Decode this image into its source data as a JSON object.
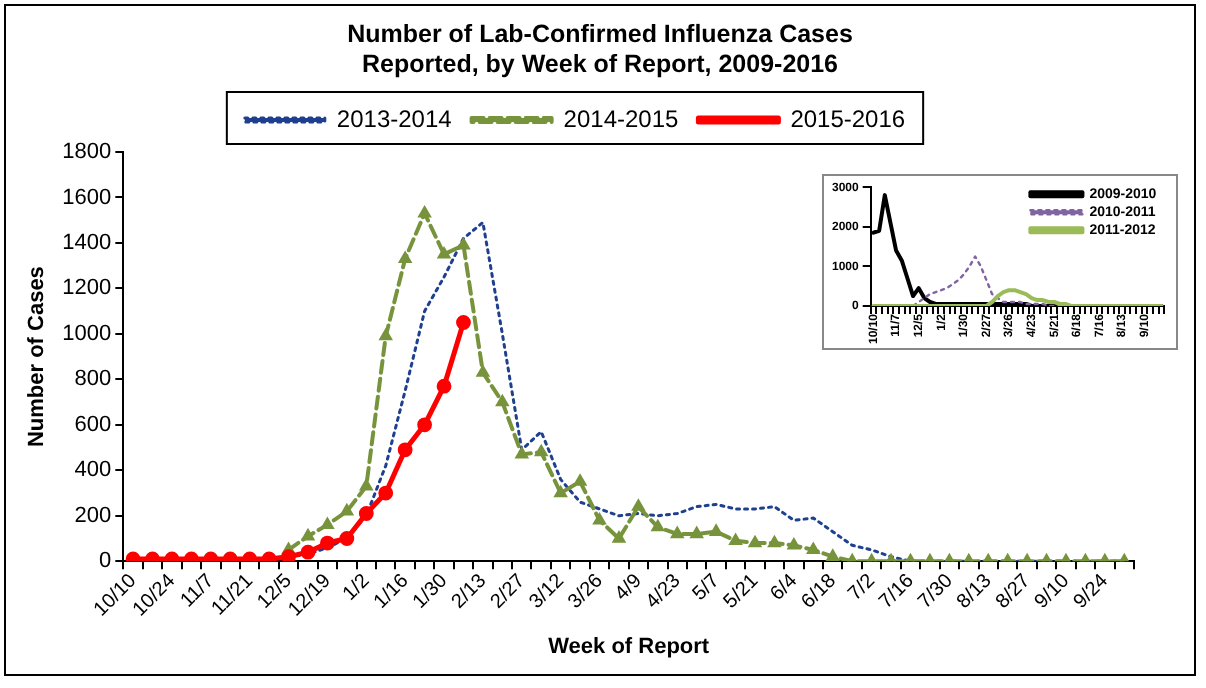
{
  "chart_data": [
    {
      "type": "line",
      "title": "Number of Lab-Confirmed Influenza Cases Reported, by Week of Report, 2009-2016",
      "xlabel": "Week of Report",
      "ylabel": "Number of Cases",
      "categories": [
        "10/10",
        null,
        "10/24",
        null,
        "11/7",
        null,
        "11/21",
        null,
        "12/5",
        null,
        "12/19",
        null,
        "1/2",
        null,
        "1/16",
        null,
        "1/30",
        null,
        "2/13",
        null,
        "2/27",
        null,
        "3/12",
        null,
        "3/26",
        null,
        "4/9",
        null,
        "4/23",
        null,
        "5/7",
        null,
        "5/21",
        null,
        "6/4",
        null,
        "6/18",
        null,
        "7/2",
        null,
        "7/16",
        null,
        "7/30",
        null,
        "8/13",
        null,
        "8/27",
        null,
        "9/10",
        null,
        "9/24",
        null
      ],
      "series": [
        {
          "name": "2013-2014",
          "color": "#1f3f8f",
          "marker": "none",
          "line_style": "dotted",
          "values": [
            null,
            null,
            null,
            null,
            null,
            null,
            null,
            null,
            20,
            30,
            60,
            100,
            200,
            420,
            750,
            1100,
            1250,
            1420,
            1490,
            1000,
            490,
            570,
            360,
            260,
            230,
            200,
            210,
            200,
            210,
            240,
            250,
            230,
            230,
            240,
            180,
            190,
            130,
            70,
            50,
            20,
            0,
            0,
            0,
            0,
            0,
            0,
            0,
            0,
            0,
            0,
            0,
            0
          ]
        },
        {
          "name": "2014-2015",
          "color": "#77933c",
          "marker": "triangle",
          "line_style": "dashed",
          "values": [
            null,
            null,
            null,
            null,
            null,
            null,
            null,
            null,
            50,
            110,
            160,
            220,
            330,
            990,
            1330,
            1530,
            1350,
            1390,
            830,
            700,
            470,
            480,
            300,
            350,
            180,
            100,
            240,
            150,
            120,
            120,
            130,
            90,
            80,
            80,
            70,
            50,
            20,
            0,
            0,
            0,
            0,
            0,
            0,
            0,
            0,
            0,
            0,
            0,
            0,
            0,
            0,
            0
          ]
        },
        {
          "name": "2015-2016",
          "color": "#ff0000",
          "marker": "circle",
          "line_style": "solid",
          "values": [
            10,
            10,
            10,
            10,
            10,
            10,
            10,
            10,
            20,
            40,
            80,
            100,
            210,
            300,
            490,
            600,
            770,
            1050,
            null,
            null,
            null,
            null,
            null,
            null,
            null,
            null,
            null,
            null,
            null,
            null,
            null,
            null,
            null,
            null,
            null,
            null,
            null,
            null,
            null,
            null,
            null,
            null,
            null,
            null,
            null,
            null,
            null,
            null,
            null,
            null,
            null,
            null
          ]
        }
      ],
      "ylim": [
        0,
        1800
      ],
      "yticks": [
        0,
        200,
        400,
        600,
        800,
        1000,
        1200,
        1400,
        1600,
        1800
      ],
      "legend": "top"
    },
    {
      "type": "line",
      "categories": [
        "10/10",
        null,
        null,
        null,
        "11/7",
        null,
        null,
        null,
        "12/5",
        null,
        null,
        null,
        "1/2",
        null,
        null,
        null,
        "1/30",
        null,
        null,
        null,
        "2/27",
        null,
        null,
        null,
        "3/26",
        null,
        null,
        null,
        "4/23",
        null,
        null,
        null,
        "5/21",
        null,
        null,
        null,
        "6/18",
        null,
        null,
        null,
        "7/16",
        null,
        null,
        null,
        "8/13",
        null,
        null,
        null,
        "9/10",
        null,
        null,
        null
      ],
      "series": [
        {
          "name": "2009-2010",
          "color": "#000000",
          "marker": "none",
          "line_style": "solid",
          "values": [
            1850,
            1900,
            2800,
            2100,
            1400,
            1150,
            700,
            250,
            450,
            200,
            100,
            50,
            50,
            50,
            50,
            50,
            50,
            50,
            50,
            50,
            50,
            50,
            50,
            50,
            50,
            50,
            50,
            50,
            0,
            0,
            0,
            0,
            0,
            0,
            0,
            0,
            0,
            0,
            0,
            0,
            0,
            0,
            0,
            0,
            0,
            0,
            0,
            0,
            0,
            0,
            0,
            0
          ]
        },
        {
          "name": "2010-2011",
          "color": "#8064a2",
          "marker": "none",
          "line_style": "dotted",
          "values": [
            0,
            0,
            0,
            0,
            0,
            0,
            0,
            0,
            100,
            200,
            300,
            350,
            400,
            450,
            550,
            650,
            800,
            1000,
            1250,
            1000,
            650,
            300,
            200,
            100,
            100,
            100,
            100,
            50,
            50,
            50,
            50,
            0,
            0,
            0,
            0,
            0,
            0,
            0,
            0,
            0,
            0,
            0,
            0,
            0,
            0,
            0,
            0,
            0,
            0,
            0,
            0,
            0
          ]
        },
        {
          "name": "2011-2012",
          "color": "#9bbb59",
          "marker": "none",
          "line_style": "solid",
          "values": [
            0,
            0,
            0,
            0,
            0,
            0,
            0,
            0,
            0,
            0,
            0,
            0,
            0,
            0,
            0,
            0,
            0,
            0,
            0,
            0,
            0,
            100,
            250,
            350,
            400,
            400,
            350,
            300,
            200,
            150,
            150,
            100,
            100,
            50,
            50,
            0,
            0,
            0,
            0,
            0,
            0,
            0,
            0,
            0,
            0,
            0,
            0,
            0,
            0,
            0,
            0,
            0
          ]
        }
      ],
      "ylim": [
        0,
        3000
      ],
      "yticks": [
        0,
        1000,
        2000,
        3000
      ],
      "legend": "top right"
    }
  ]
}
